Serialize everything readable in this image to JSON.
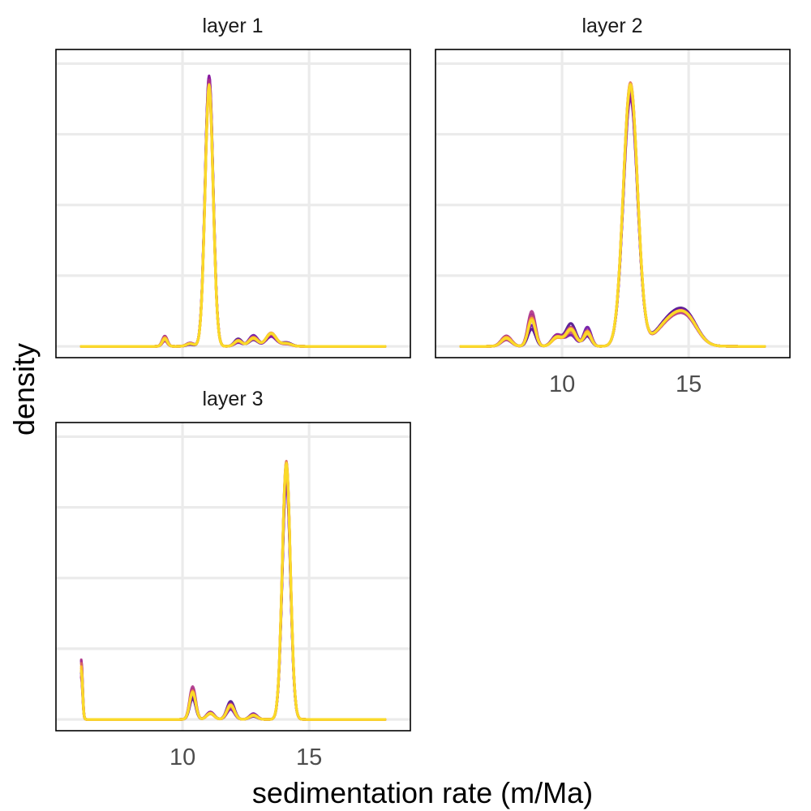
{
  "chart_data": {
    "type": "line",
    "layout": "faceted density plot, 2 columns",
    "xlabel": "sedimentation rate (m/Ma)",
    "ylabel": "density",
    "xlim": [
      5,
      19
    ],
    "x_ticks": [
      10,
      15
    ],
    "y_ticks_shown": false,
    "grid": true,
    "legend": "none",
    "palette": [
      "#4b0c8b",
      "#6a0ea3",
      "#8e1b9f",
      "#ad3388",
      "#c84f72",
      "#de6a5c",
      "#ee8a45",
      "#f8ab2f",
      "#fcc627",
      "#f9dd2a"
    ],
    "facets": [
      {
        "title": "layer 1",
        "x_range": [
          6,
          18
        ],
        "ylim": [
          0,
          1.05
        ],
        "peaks": [
          {
            "x": 9.3,
            "height": 0.028,
            "width": 0.1,
            "variation": 0.9
          },
          {
            "x": 10.3,
            "height": 0.01,
            "width": 0.15,
            "variation": 0.6
          },
          {
            "x": 11.05,
            "height": 0.91,
            "width": 0.16,
            "variation": 0.1
          },
          {
            "x": 12.2,
            "height": 0.02,
            "width": 0.15,
            "variation": 0.6
          },
          {
            "x": 12.8,
            "height": 0.03,
            "width": 0.18,
            "variation": 0.5
          },
          {
            "x": 13.5,
            "height": 0.045,
            "width": 0.2,
            "variation": 0.4
          },
          {
            "x": 14.1,
            "height": 0.01,
            "width": 0.2,
            "variation": 0.6
          }
        ]
      },
      {
        "title": "layer 2",
        "x_range": [
          6,
          18
        ],
        "ylim": [
          0,
          1.05
        ],
        "peaks": [
          {
            "x": 7.8,
            "height": 0.03,
            "width": 0.2,
            "variation": 0.7
          },
          {
            "x": 8.8,
            "height": 0.1,
            "width": 0.15,
            "variation": 0.6
          },
          {
            "x": 9.8,
            "height": 0.03,
            "width": 0.2,
            "variation": 0.7
          },
          {
            "x": 10.35,
            "height": 0.06,
            "width": 0.2,
            "variation": 0.6
          },
          {
            "x": 11.0,
            "height": 0.05,
            "width": 0.15,
            "variation": 0.6
          },
          {
            "x": 12.7,
            "height": 0.92,
            "width": 0.28,
            "variation": 0.08
          },
          {
            "x": 14.4,
            "height": 0.1,
            "width": 0.6,
            "variation": 0.15
          },
          {
            "x": 15.0,
            "height": 0.05,
            "width": 0.4,
            "variation": 0.2
          }
        ]
      },
      {
        "title": "layer 3",
        "x_range": [
          6,
          18
        ],
        "ylim": [
          0,
          1.05
        ],
        "peaks": [
          {
            "x": 6.0,
            "height": 0.18,
            "width": 0.05,
            "variation": 0.5
          },
          {
            "x": 10.4,
            "height": 0.1,
            "width": 0.12,
            "variation": 0.4
          },
          {
            "x": 11.1,
            "height": 0.02,
            "width": 0.15,
            "variation": 0.6
          },
          {
            "x": 11.9,
            "height": 0.05,
            "width": 0.15,
            "variation": 0.5
          },
          {
            "x": 12.8,
            "height": 0.015,
            "width": 0.15,
            "variation": 0.6
          },
          {
            "x": 14.1,
            "height": 0.9,
            "width": 0.16,
            "variation": 0.1
          }
        ]
      }
    ]
  }
}
